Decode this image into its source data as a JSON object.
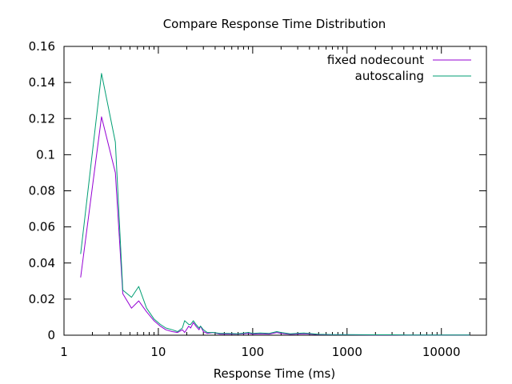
{
  "chart_data": {
    "type": "line",
    "title": "Compare Response Time Distribution",
    "xlabel": "Response Time (ms)",
    "ylabel": "",
    "xscale": "log",
    "xlim": [
      1,
      30000
    ],
    "ylim": [
      0,
      0.16
    ],
    "xticks": [
      1,
      10,
      100,
      1000,
      10000
    ],
    "xtick_labels": [
      "1",
      "10",
      "100",
      "1000",
      "10000"
    ],
    "yticks": [
      0,
      0.02,
      0.04,
      0.06,
      0.08,
      0.1,
      0.12,
      0.14,
      0.16
    ],
    "ytick_labels": [
      "0",
      "0.02",
      "0.04",
      "0.06",
      "0.08",
      "0.1",
      "0.12",
      "0.14",
      "0.16"
    ],
    "grid": false,
    "legend_position": "top-right",
    "series": [
      {
        "name": "fixed nodecount",
        "color": "#9400d3",
        "x": [
          1.5,
          2.5,
          3.5,
          4.2,
          5.2,
          6.2,
          7.5,
          9,
          10.5,
          12,
          14,
          16,
          18,
          19,
          21,
          22,
          23.5,
          25,
          27,
          28,
          30,
          33,
          38,
          45,
          55,
          70,
          90,
          100,
          120,
          150,
          180,
          200,
          250,
          350,
          500,
          700,
          1000,
          2000,
          3000,
          5000,
          10000,
          20000
        ],
        "y": [
          0.032,
          0.121,
          0.09,
          0.023,
          0.015,
          0.019,
          0.013,
          0.008,
          0.005,
          0.003,
          0.002,
          0.0015,
          0.003,
          0.0015,
          0.005,
          0.004,
          0.007,
          0.005,
          0.003,
          0.005,
          0.002,
          0.001,
          0.0015,
          0.0006,
          0.0006,
          0.0006,
          0.001,
          0.0006,
          0.0008,
          0.0006,
          0.0015,
          0.001,
          0.0005,
          0.0008,
          0.0003,
          0.0002,
          0.0002,
          0.0001,
          0.0001,
          0.0001,
          0.0001,
          0.0001
        ]
      },
      {
        "name": "autoscaling",
        "color": "#009e73",
        "x": [
          1.5,
          2.5,
          3.5,
          4.2,
          5.2,
          6.2,
          7.5,
          9,
          10.5,
          12,
          14,
          16,
          18,
          19,
          21,
          22,
          23.5,
          25,
          27,
          28,
          30,
          33,
          38,
          45,
          55,
          70,
          90,
          100,
          120,
          150,
          180,
          200,
          250,
          350,
          500,
          700,
          1000,
          2000,
          3000,
          5000,
          10000,
          20000
        ],
        "y": [
          0.045,
          0.145,
          0.107,
          0.025,
          0.021,
          0.027,
          0.015,
          0.009,
          0.006,
          0.004,
          0.003,
          0.002,
          0.004,
          0.008,
          0.006,
          0.006,
          0.008,
          0.006,
          0.004,
          0.005,
          0.003,
          0.0015,
          0.0015,
          0.001,
          0.001,
          0.0008,
          0.0015,
          0.001,
          0.0012,
          0.001,
          0.002,
          0.0015,
          0.0008,
          0.0012,
          0.0005,
          0.0003,
          0.0003,
          0.0002,
          0.0002,
          0.0001,
          0.0001,
          0.0001
        ]
      }
    ]
  }
}
